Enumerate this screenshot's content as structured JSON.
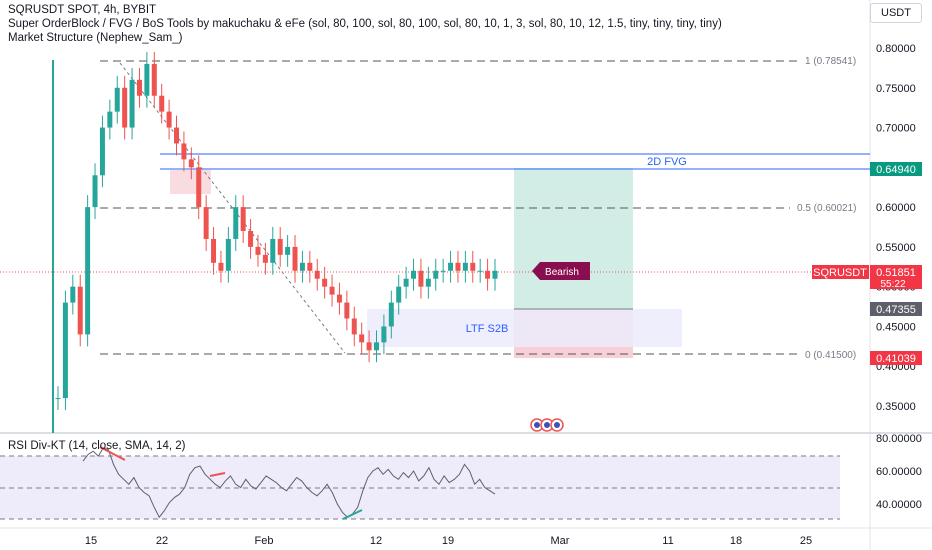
{
  "header": {
    "symbol_line": "SQRUSDT SPOT, 4h, BYBIT",
    "indicator_1": "Super OrderBlock / FVG / BoS Tools by makuchaku & eFe (sol, 80, 100, sol, 80, 100, sol, 80, 10, 1, 3, sol, 80, 10, 12, 1.5, tiny, tiny, tiny, tiny)",
    "indicator_2": "Market Structure (Nephew_Sam_)",
    "currency_button": "USDT"
  },
  "rsi_panel": {
    "title": "RSI Div-KT (14, close, SMA, 14, 2)"
  },
  "annotations": {
    "fvg_label": "2D FVG",
    "ltf_label": "LTF S2B",
    "bearish_label": "Bearish",
    "fib_top": "1 (0.78541)",
    "fib_mid": "0.5 (0.60021)",
    "fib_bottom": "0 (0.41500)"
  },
  "price_tags": {
    "upper": "0.64940",
    "symbol_name": "SQRUSDT",
    "last_price": "0.51851",
    "countdown": "55:22",
    "mid": "0.47355",
    "lower": "0.41039"
  },
  "colors": {
    "bull": "#26a69a",
    "bear": "#ef5350",
    "fvg_line": "#2962ff",
    "long_zone": "#d2ede6",
    "short_zone": "#f7cfd6",
    "ltf_zone": "#ecebfb",
    "rsi_line": "#787b86",
    "bearish_badge": "#880e4f"
  },
  "chart_data": [
    {
      "type": "candlestick",
      "title": "SQRUSDT SPOT, 4h, BYBIT",
      "y_axis": {
        "ticks": [
          "0.80000",
          "0.75000",
          "0.70000",
          "0.65000",
          "0.60000",
          "0.55000",
          "0.50000",
          "0.45000",
          "0.40000",
          "0.35000"
        ],
        "range": [
          0.315,
          0.82
        ]
      },
      "x_axis": {
        "ticks": [
          "15",
          "22",
          "Feb",
          "12",
          "19",
          "Mar",
          "11",
          "18",
          "25"
        ]
      },
      "close_series": [
        0.36,
        0.48,
        0.5,
        0.44,
        0.6,
        0.64,
        0.7,
        0.72,
        0.75,
        0.7,
        0.76,
        0.74,
        0.78,
        0.74,
        0.72,
        0.7,
        0.68,
        0.66,
        0.65,
        0.6,
        0.56,
        0.53,
        0.52,
        0.56,
        0.6,
        0.57,
        0.55,
        0.54,
        0.53,
        0.56,
        0.54,
        0.55,
        0.52,
        0.53,
        0.52,
        0.51,
        0.5,
        0.49,
        0.48,
        0.46,
        0.44,
        0.43,
        0.42,
        0.43,
        0.45,
        0.48,
        0.5,
        0.51,
        0.52,
        0.5,
        0.51,
        0.52,
        0.52,
        0.53,
        0.52,
        0.53,
        0.52,
        0.52,
        0.51,
        0.52
      ],
      "levels": {
        "fvg_upper": 0.6668,
        "fvg_lower": 0.6494,
        "long_target": 0.6494,
        "entry": 0.47355,
        "stop": 0.41039,
        "last_price": 0.51851,
        "fib_1": 0.78541,
        "fib_05": 0.60021,
        "fib_0": 0.415,
        "ltf_top": 0.4735,
        "ltf_bottom": 0.4275
      }
    },
    {
      "type": "line",
      "title": "RSI Div-KT (14, close, SMA, 14, 2)",
      "y_axis": {
        "ticks": [
          "80.00000",
          "60.00000",
          "40.00000"
        ],
        "range": [
          25,
          82
        ]
      },
      "levels": [
        70,
        50,
        30
      ],
      "values": [
        66,
        70,
        72,
        69,
        74,
        73,
        64,
        58,
        55,
        52,
        56,
        50,
        47,
        45,
        38,
        32,
        36,
        41,
        44,
        46,
        50,
        58,
        62,
        63,
        58,
        55,
        52,
        50,
        54,
        57,
        52,
        50,
        55,
        51,
        49,
        53,
        57,
        55,
        53,
        50,
        48,
        52,
        56,
        54,
        50,
        47,
        45,
        48,
        52,
        47,
        40,
        35,
        32,
        34,
        38,
        48,
        56,
        60,
        62,
        58,
        61,
        57,
        55,
        59,
        56,
        60,
        54,
        57,
        62,
        55,
        52,
        57,
        53,
        55,
        58,
        64,
        60,
        52,
        55,
        50,
        48,
        46
      ]
    }
  ]
}
